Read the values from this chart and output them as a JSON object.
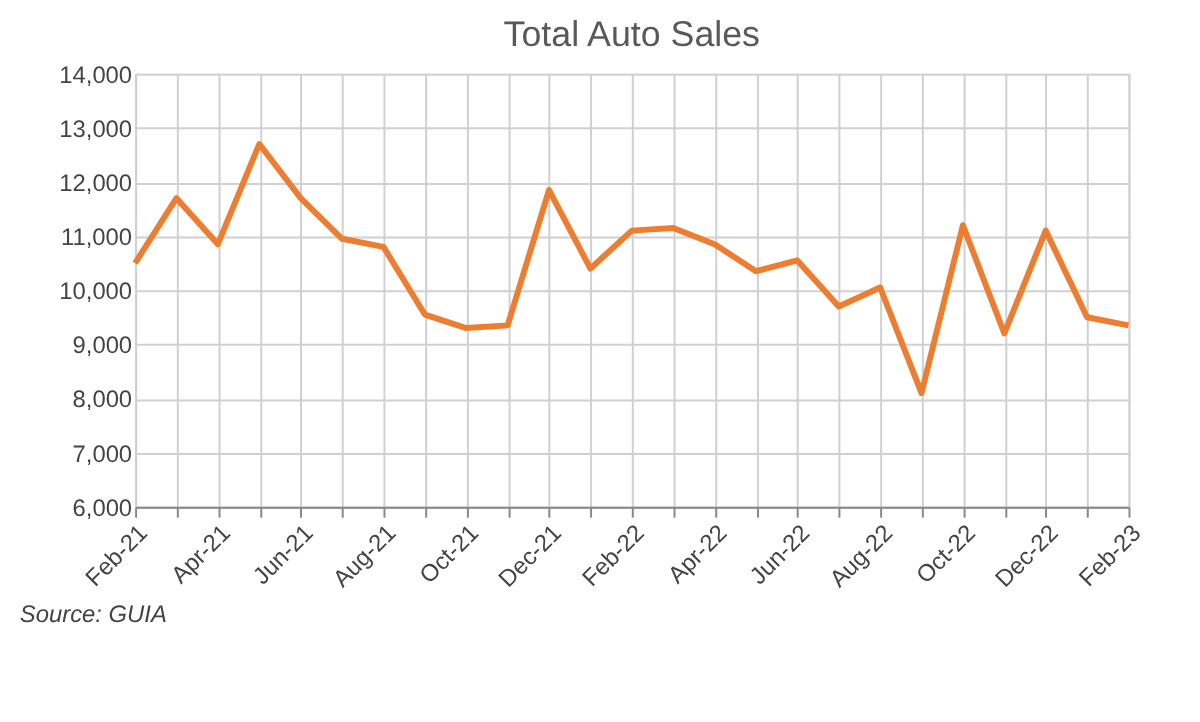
{
  "chart_data": {
    "type": "line",
    "title": "Total Auto Sales",
    "categories": [
      "Feb-21",
      null,
      "Apr-21",
      null,
      "Jun-21",
      null,
      "Aug-21",
      null,
      "Oct-21",
      null,
      "Dec-21",
      null,
      "Feb-22",
      null,
      "Apr-22",
      null,
      "Jun-22",
      null,
      "Aug-22",
      null,
      "Oct-22",
      null,
      "Dec-22",
      null,
      "Feb-23"
    ],
    "series": [
      {
        "color": "#ed7d31",
        "values": [
          10500,
          11700,
          10850,
          12700,
          11700,
          10950,
          10800,
          9550,
          9300,
          9350,
          11850,
          10400,
          11100,
          11150,
          10850,
          10350,
          10550,
          9700,
          10050,
          8100,
          11200,
          9200,
          11100,
          9500,
          9350
        ]
      }
    ],
    "ylim": [
      6000,
      14000
    ],
    "yticks": [
      {
        "value": 6000,
        "label": "6,000"
      },
      {
        "value": 7000,
        "label": "7,000"
      },
      {
        "value": 8000,
        "label": "8,000"
      },
      {
        "value": 9000,
        "label": "9,000"
      },
      {
        "value": 10000,
        "label": "10,000"
      },
      {
        "value": 11000,
        "label": "11,000"
      },
      {
        "value": 12000,
        "label": "12,000"
      },
      {
        "value": 13000,
        "label": "13,000"
      },
      {
        "value": 14000,
        "label": "14,000"
      }
    ],
    "grid": true,
    "marker": "none",
    "line_style": "solid",
    "annotations": [
      "Source: GUIA"
    ]
  }
}
